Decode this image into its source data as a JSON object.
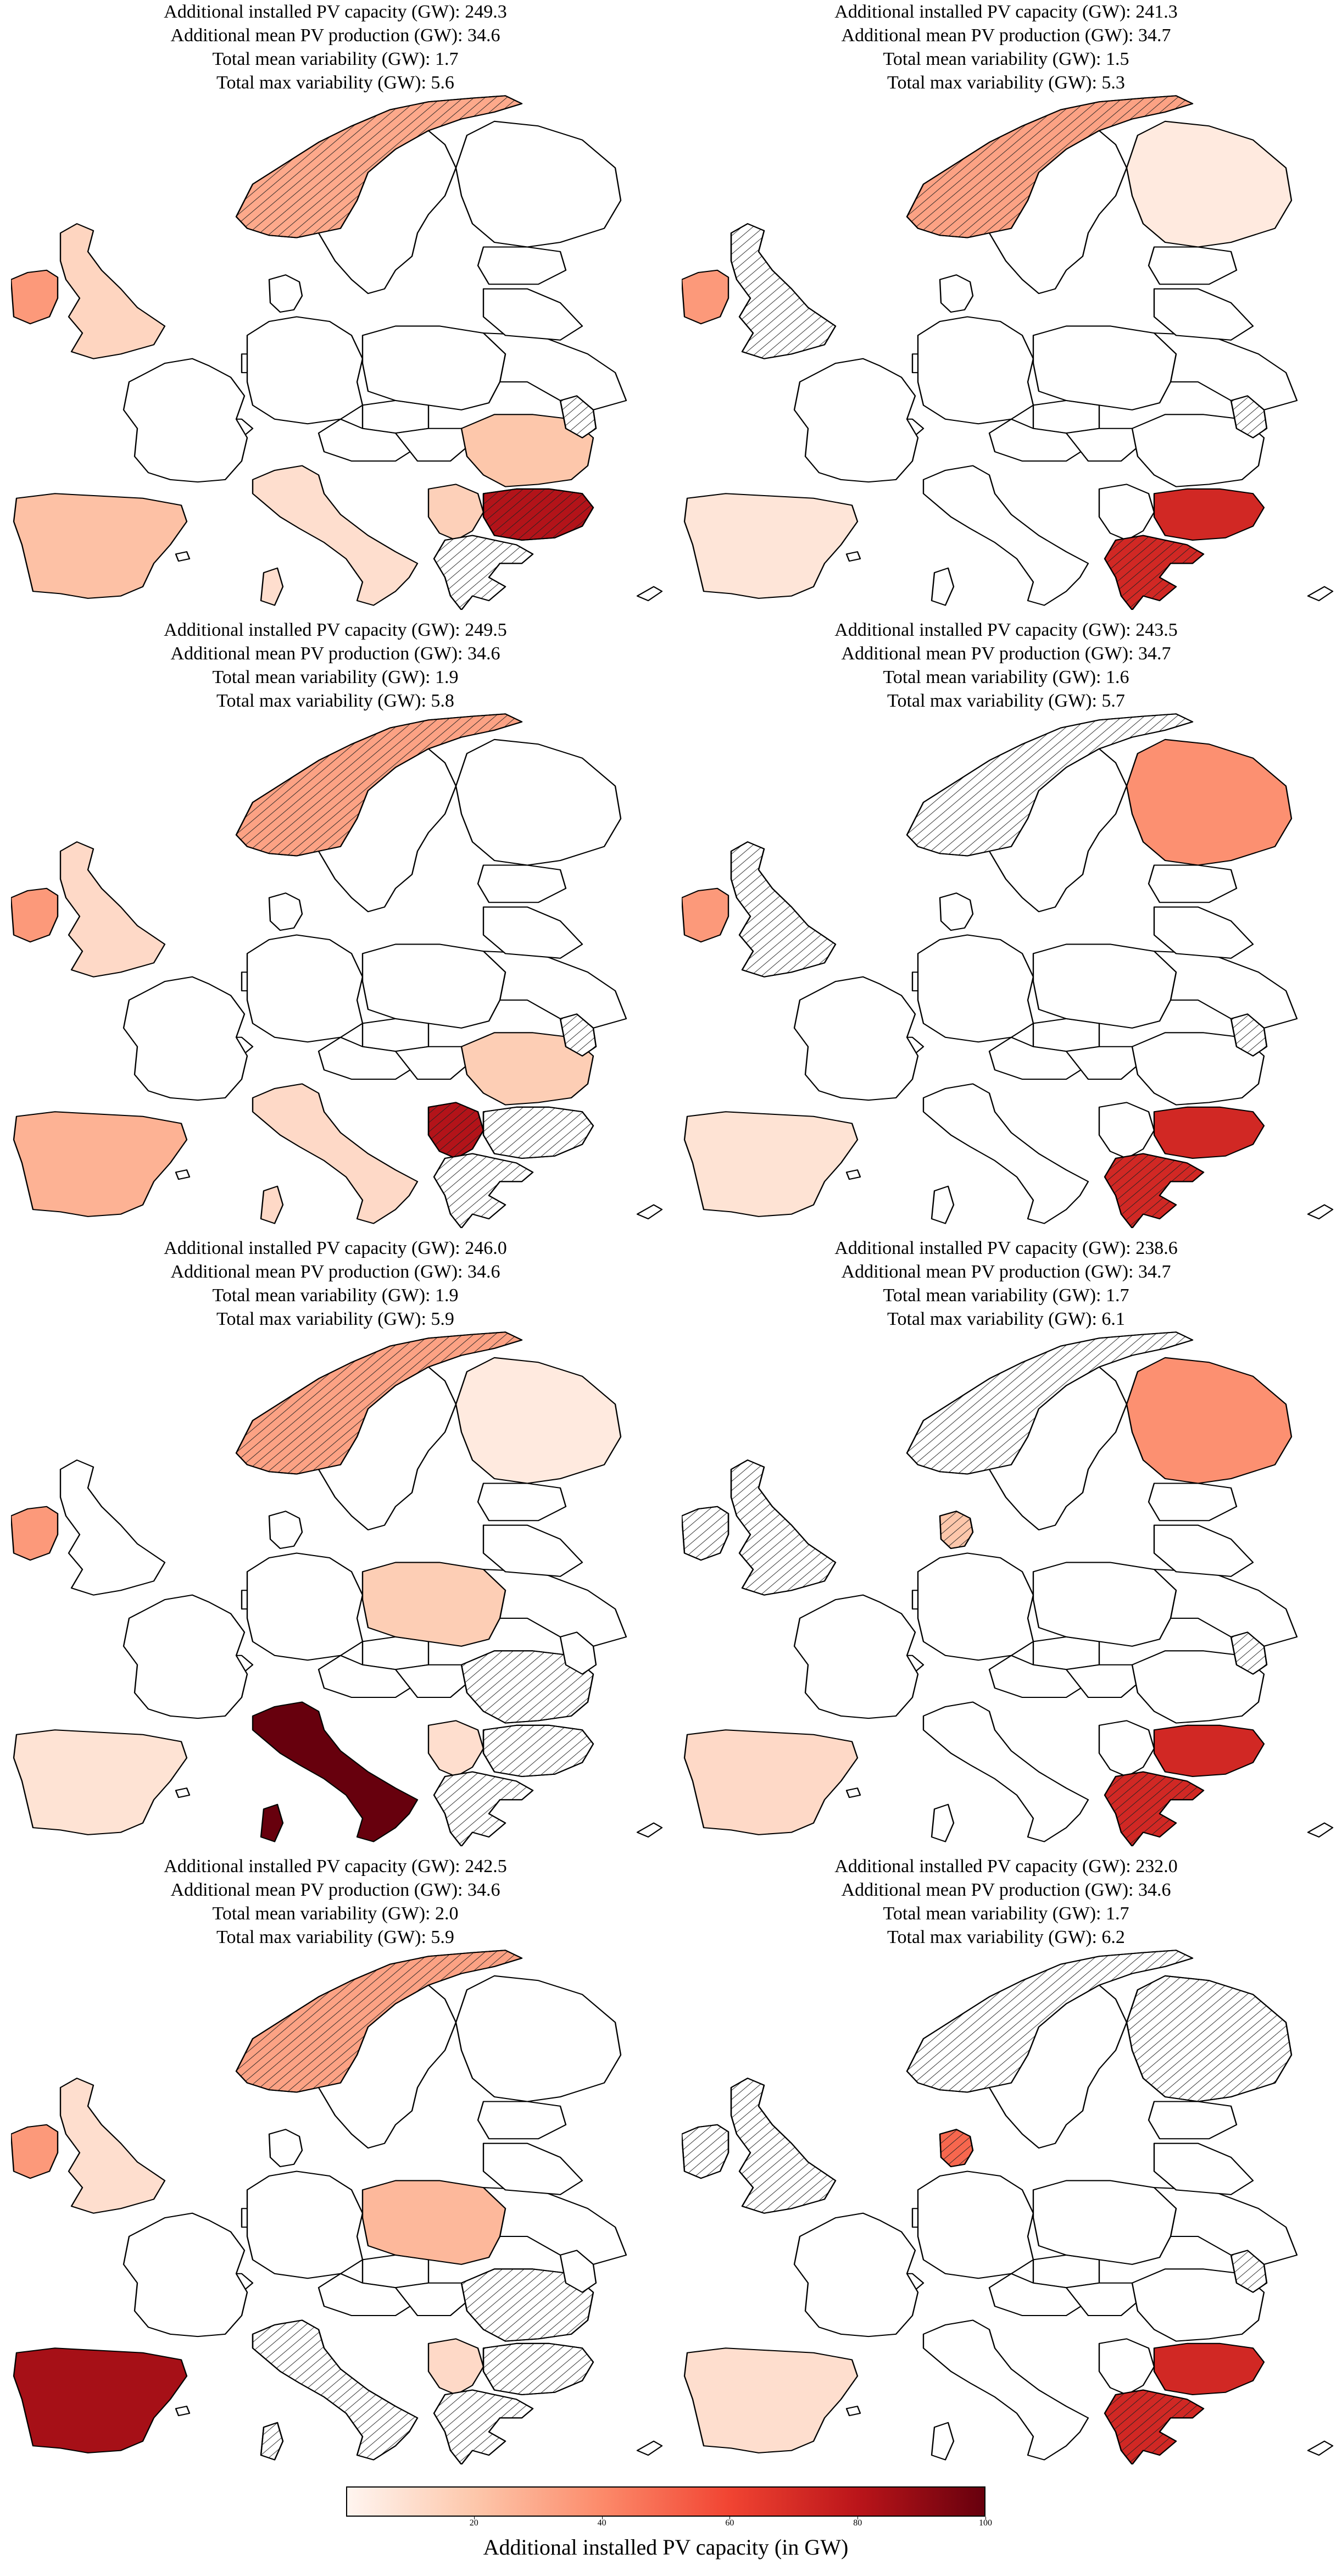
{
  "panels": [
    {
      "stats": [
        "Additional installed PV capacity (GW): 249.3",
        "Additional mean PV production (GW): 34.6",
        "Total mean variability (GW): 1.7",
        "Total max variability (GW): 5.6"
      ],
      "countries": {
        "NO": {
          "capacity": 30,
          "hatched": true
        },
        "IE": {
          "capacity": 35
        },
        "GB": {
          "capacity": 14
        },
        "ES": {
          "capacity": 22
        },
        "IT": {
          "capacity": 10
        },
        "RO": {
          "capacity": 20
        },
        "BG": {
          "capacity": 82,
          "hatched": true
        },
        "RS": {
          "capacity": 16
        },
        "GR": {
          "capacity": 0,
          "hatched": true
        },
        "MD": {
          "capacity": 0,
          "hatched": true
        },
        "FI": {
          "capacity": 0
        },
        "SE": {
          "capacity": 0
        },
        "FR": {
          "capacity": 0
        },
        "DE": {
          "capacity": 0
        },
        "PL": {
          "capacity": 0
        }
      }
    },
    {
      "stats": [
        "Additional installed PV capacity (GW): 241.3",
        "Additional mean PV production (GW): 34.7",
        "Total mean variability (GW): 1.5",
        "Total max variability (GW): 5.3"
      ],
      "countries": {
        "NO": {
          "capacity": 32,
          "hatched": true
        },
        "IE": {
          "capacity": 35
        },
        "GB": {
          "capacity": 0,
          "hatched": true
        },
        "FI": {
          "capacity": 5
        },
        "ES": {
          "capacity": 7
        },
        "BG": {
          "capacity": 72
        },
        "GR": {
          "capacity": 72,
          "hatched": true
        },
        "MD": {
          "capacity": 0,
          "hatched": true
        },
        "SE": {
          "capacity": 0
        },
        "FR": {
          "capacity": 0
        },
        "IT": {
          "capacity": 0
        },
        "DE": {
          "capacity": 0
        },
        "PL": {
          "capacity": 0
        },
        "RO": {
          "capacity": 0
        },
        "RS": {
          "capacity": 0
        }
      }
    },
    {
      "stats": [
        "Additional installed PV capacity (GW): 249.5",
        "Additional mean PV production (GW): 34.6",
        "Total mean variability (GW): 1.9",
        "Total max variability (GW): 5.8"
      ],
      "countries": {
        "NO": {
          "capacity": 32,
          "hatched": true
        },
        "IE": {
          "capacity": 35
        },
        "GB": {
          "capacity": 12
        },
        "ES": {
          "capacity": 27
        },
        "IT": {
          "capacity": 12
        },
        "RO": {
          "capacity": 17
        },
        "RS": {
          "capacity": 82,
          "hatched": true
        },
        "GR": {
          "capacity": 0,
          "hatched": true
        },
        "BG": {
          "capacity": 0,
          "hatched": true
        },
        "MD": {
          "capacity": 0,
          "hatched": true
        },
        "FI": {
          "capacity": 0
        },
        "SE": {
          "capacity": 0
        },
        "FR": {
          "capacity": 0
        },
        "DE": {
          "capacity": 0
        },
        "PL": {
          "capacity": 0
        }
      }
    },
    {
      "stats": [
        "Additional installed PV capacity (GW): 243.5",
        "Additional mean PV production (GW): 34.7",
        "Total mean variability (GW): 1.6",
        "Total max variability (GW): 5.7"
      ],
      "countries": {
        "NO": {
          "capacity": 0,
          "hatched": true
        },
        "IE": {
          "capacity": 35
        },
        "GB": {
          "capacity": 0,
          "hatched": true
        },
        "FI": {
          "capacity": 38
        },
        "ES": {
          "capacity": 8
        },
        "BG": {
          "capacity": 72
        },
        "GR": {
          "capacity": 72,
          "hatched": true
        },
        "MD": {
          "capacity": 0,
          "hatched": true
        },
        "SE": {
          "capacity": 0
        },
        "FR": {
          "capacity": 0
        },
        "IT": {
          "capacity": 0
        },
        "DE": {
          "capacity": 0
        },
        "PL": {
          "capacity": 0
        },
        "RO": {
          "capacity": 0
        },
        "RS": {
          "capacity": 0
        }
      }
    },
    {
      "stats": [
        "Additional installed PV capacity (GW): 246.0",
        "Additional mean PV production (GW): 34.6",
        "Total mean variability (GW): 1.9",
        "Total max variability (GW): 5.9"
      ],
      "countries": {
        "NO": {
          "capacity": 32,
          "hatched": true
        },
        "IE": {
          "capacity": 35
        },
        "GB": {
          "capacity": 0
        },
        "FI": {
          "capacity": 5
        },
        "PL": {
          "capacity": 17
        },
        "IT": {
          "capacity": 100
        },
        "ES": {
          "capacity": 8
        },
        "RO": {
          "capacity": 0,
          "hatched": true
        },
        "BG": {
          "capacity": 0,
          "hatched": true
        },
        "GR": {
          "capacity": 0,
          "hatched": true
        },
        "RS": {
          "capacity": 10
        },
        "SE": {
          "capacity": 0
        },
        "FR": {
          "capacity": 0
        },
        "DE": {
          "capacity": 0
        },
        "MD": {
          "capacity": 0
        }
      }
    },
    {
      "stats": [
        "Additional installed PV capacity (GW): 238.6",
        "Additional mean PV production (GW): 34.7",
        "Total mean variability (GW): 1.7",
        "Total max variability (GW): 6.1"
      ],
      "countries": {
        "NO": {
          "capacity": 0,
          "hatched": true
        },
        "IE": {
          "capacity": 0,
          "hatched": true
        },
        "GB": {
          "capacity": 0,
          "hatched": true
        },
        "FI": {
          "capacity": 38
        },
        "DK": {
          "capacity": 20,
          "hatched": true
        },
        "ES": {
          "capacity": 12
        },
        "BG": {
          "capacity": 72
        },
        "GR": {
          "capacity": 72,
          "hatched": true
        },
        "MD": {
          "capacity": 0,
          "hatched": true
        },
        "SE": {
          "capacity": 0
        },
        "FR": {
          "capacity": 0
        },
        "IT": {
          "capacity": 0
        },
        "DE": {
          "capacity": 0
        },
        "PL": {
          "capacity": 0
        },
        "RO": {
          "capacity": 0
        },
        "RS": {
          "capacity": 0
        }
      }
    },
    {
      "stats": [
        "Additional installed PV capacity (GW): 242.5",
        "Additional mean PV production (GW): 34.6",
        "Total mean variability (GW): 2.0",
        "Total max variability (GW): 5.9"
      ],
      "countries": {
        "NO": {
          "capacity": 32,
          "hatched": true
        },
        "IE": {
          "capacity": 35
        },
        "GB": {
          "capacity": 10
        },
        "PL": {
          "capacity": 25
        },
        "ES": {
          "capacity": 85
        },
        "IT": {
          "capacity": 0,
          "hatched": true
        },
        "RO": {
          "capacity": 0,
          "hatched": true
        },
        "BG": {
          "capacity": 0,
          "hatched": true
        },
        "GR": {
          "capacity": 0,
          "hatched": true
        },
        "RS": {
          "capacity": 12
        },
        "FI": {
          "capacity": 0
        },
        "SE": {
          "capacity": 0
        },
        "FR": {
          "capacity": 0
        },
        "DE": {
          "capacity": 0
        },
        "MD": {
          "capacity": 0
        }
      }
    },
    {
      "stats": [
        "Additional installed PV capacity (GW): 232.0",
        "Additional mean PV production (GW): 34.6",
        "Total mean variability (GW): 1.7",
        "Total max variability (GW): 6.2"
      ],
      "countries": {
        "NO": {
          "capacity": 0,
          "hatched": true
        },
        "IE": {
          "capacity": 0,
          "hatched": true
        },
        "GB": {
          "capacity": 0,
          "hatched": true
        },
        "FI": {
          "capacity": 0,
          "hatched": true
        },
        "DK": {
          "capacity": 50,
          "hatched": true
        },
        "ES": {
          "capacity": 10
        },
        "BG": {
          "capacity": 72
        },
        "GR": {
          "capacity": 72,
          "hatched": true
        },
        "MD": {
          "capacity": 0,
          "hatched": true
        },
        "SE": {
          "capacity": 0
        },
        "FR": {
          "capacity": 0
        },
        "IT": {
          "capacity": 0
        },
        "DE": {
          "capacity": 0
        },
        "PL": {
          "capacity": 0
        },
        "RO": {
          "capacity": 0
        },
        "RS": {
          "capacity": 0
        }
      }
    }
  ],
  "colorbar": {
    "label": "Additional installed PV capacity (in GW)",
    "min": 0,
    "max": 100,
    "ticks": [
      "20",
      "40",
      "60",
      "80",
      "100"
    ],
    "colors": [
      "#fff5f0",
      "#fdc7ab",
      "#fc8a6a",
      "#f14432",
      "#bb151a",
      "#67000d"
    ]
  }
}
